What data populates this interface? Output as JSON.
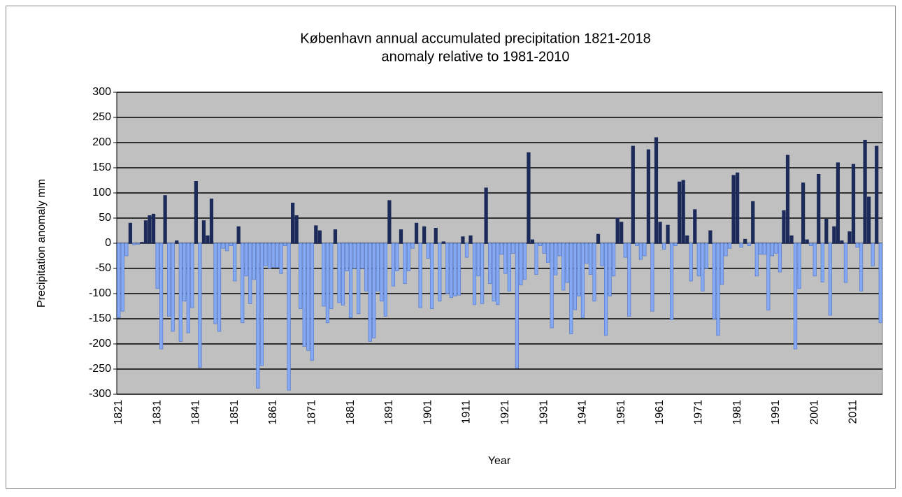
{
  "chart_data": {
    "type": "bar",
    "title": "København annual accumulated precipitation 1821-2018",
    "subtitle": "anomaly relative to 1981-2010",
    "x_label": "Year",
    "y_label": "Precipitation anomaly mm",
    "categories": [
      "1821",
      null,
      null,
      null,
      null,
      null,
      null,
      null,
      null,
      null,
      "1831",
      null,
      null,
      null,
      null,
      null,
      null,
      null,
      null,
      null,
      "1841",
      null,
      null,
      null,
      null,
      null,
      null,
      null,
      null,
      null,
      "1851",
      null,
      null,
      null,
      null,
      null,
      null,
      null,
      null,
      null,
      "1861",
      null,
      null,
      null,
      null,
      null,
      null,
      null,
      null,
      null,
      "1871",
      null,
      null,
      null,
      null,
      null,
      null,
      null,
      null,
      null,
      "1881",
      null,
      null,
      null,
      null,
      null,
      null,
      null,
      null,
      null,
      "1891",
      null,
      null,
      null,
      null,
      null,
      null,
      null,
      null,
      null,
      "1901",
      null,
      null,
      null,
      null,
      null,
      null,
      null,
      null,
      null,
      "1911",
      null,
      null,
      null,
      null,
      null,
      null,
      null,
      null,
      null,
      "1921",
      null,
      null,
      null,
      null,
      null,
      null,
      null,
      null,
      null,
      "1931",
      null,
      null,
      null,
      null,
      null,
      null,
      null,
      null,
      null,
      "1941",
      null,
      null,
      null,
      null,
      null,
      null,
      null,
      null,
      null,
      "1951",
      null,
      null,
      null,
      null,
      null,
      null,
      null,
      null,
      null,
      "1961",
      null,
      null,
      null,
      null,
      null,
      null,
      null,
      null,
      null,
      "1971",
      null,
      null,
      null,
      null,
      null,
      null,
      null,
      null,
      null,
      "1981",
      null,
      null,
      null,
      null,
      null,
      null,
      null,
      null,
      null,
      "1991",
      null,
      null,
      null,
      null,
      null,
      null,
      null,
      null,
      null,
      "2001",
      null,
      null,
      null,
      null,
      null,
      null,
      null,
      null,
      null,
      "2011",
      null,
      null,
      null,
      null,
      null,
      null,
      null
    ],
    "values": [
      -148,
      -135,
      -25,
      40,
      -3,
      -2,
      2,
      45,
      55,
      58,
      -90,
      -210,
      95,
      -145,
      -175,
      5,
      -195,
      -115,
      -178,
      -128,
      123,
      -247,
      45,
      15,
      88,
      -160,
      -175,
      -10,
      -15,
      -5,
      -75,
      33,
      -158,
      -65,
      -120,
      -72,
      -288,
      -243,
      -45,
      -50,
      -48,
      -48,
      -60,
      -5,
      -292,
      80,
      55,
      -130,
      -205,
      -213,
      -233,
      35,
      25,
      -125,
      -158,
      -130,
      27,
      -118,
      -123,
      -55,
      -148,
      -50,
      -140,
      -50,
      -95,
      -195,
      -188,
      -95,
      -115,
      -145,
      85,
      -85,
      -55,
      27,
      -80,
      -55,
      -10,
      40,
      -128,
      33,
      -30,
      -130,
      30,
      -115,
      3,
      -100,
      -108,
      -105,
      -103,
      13,
      -28,
      15,
      -122,
      -65,
      -120,
      110,
      -80,
      -115,
      -122,
      -22,
      -60,
      -95,
      -20,
      -248,
      -83,
      -72,
      180,
      7,
      -62,
      -5,
      -20,
      -38,
      -168,
      -63,
      -25,
      -93,
      -78,
      -180,
      -132,
      -105,
      -148,
      -40,
      -62,
      -115,
      18,
      -45,
      -183,
      -105,
      -65,
      50,
      42,
      -28,
      -145,
      193,
      -5,
      -32,
      -25,
      186,
      -135,
      210,
      42,
      -12,
      36,
      -152,
      -5,
      122,
      125,
      15,
      -75,
      67,
      -65,
      -95,
      -50,
      25,
      -150,
      -183,
      -82,
      -25,
      -10,
      135,
      140,
      -8,
      8,
      -5,
      83,
      -65,
      -22,
      -22,
      -133,
      -25,
      -20,
      -57,
      65,
      175,
      15,
      -210,
      -90,
      120,
      7,
      -5,
      -65,
      137,
      -77,
      48,
      -143,
      33,
      160,
      5,
      -78,
      23,
      157,
      -8,
      -95,
      205,
      92,
      -45,
      193,
      -158
    ],
    "color": "#1c2a5a",
    "negative_color": "#85a9f2",
    "ylim": [
      -300,
      300
    ],
    "yticks": [
      -300,
      -250,
      -200,
      -150,
      -100,
      -50,
      0,
      50,
      100,
      150,
      200,
      250,
      300
    ],
    "grid": true
  }
}
